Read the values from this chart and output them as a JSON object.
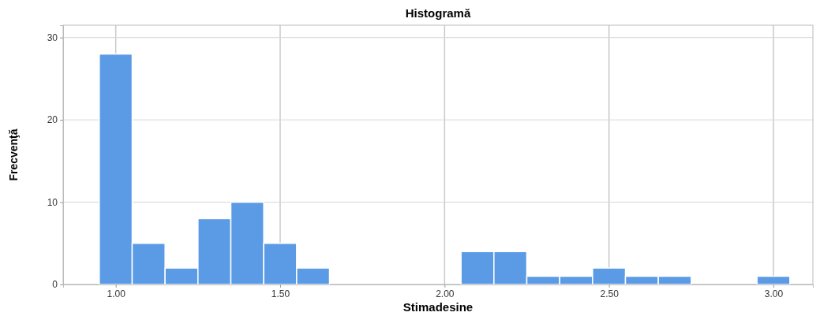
{
  "chart_data": {
    "type": "histogram",
    "title": "Histogramă",
    "xlabel": "Stimadesine",
    "ylabel": "Frecvenţă",
    "bins": [
      0.95,
      1.05,
      1.15,
      1.25,
      1.35,
      1.45,
      1.55,
      1.65,
      1.75,
      1.85,
      1.95,
      2.05,
      2.15,
      2.25,
      2.35,
      2.45,
      2.55,
      2.65,
      2.75,
      2.85,
      2.95,
      3.05
    ],
    "values": [
      28,
      5,
      2,
      8,
      10,
      5,
      2,
      0,
      0,
      0,
      0,
      4,
      4,
      1,
      1,
      2,
      1,
      1,
      0,
      0,
      1
    ],
    "color": "#5b9be6",
    "xlim": [
      0.84,
      3.12
    ],
    "ylim": [
      0,
      31.5
    ],
    "xticks": [
      {
        "value": 1,
        "label": "1.00"
      },
      {
        "value": 1.5,
        "label": "1.50"
      },
      {
        "value": 2,
        "label": "2.00"
      },
      {
        "value": 2.5,
        "label": "2.50"
      },
      {
        "value": 3,
        "label": "3.00"
      }
    ],
    "yticks": [
      0,
      10,
      20,
      30
    ],
    "grid": true
  }
}
